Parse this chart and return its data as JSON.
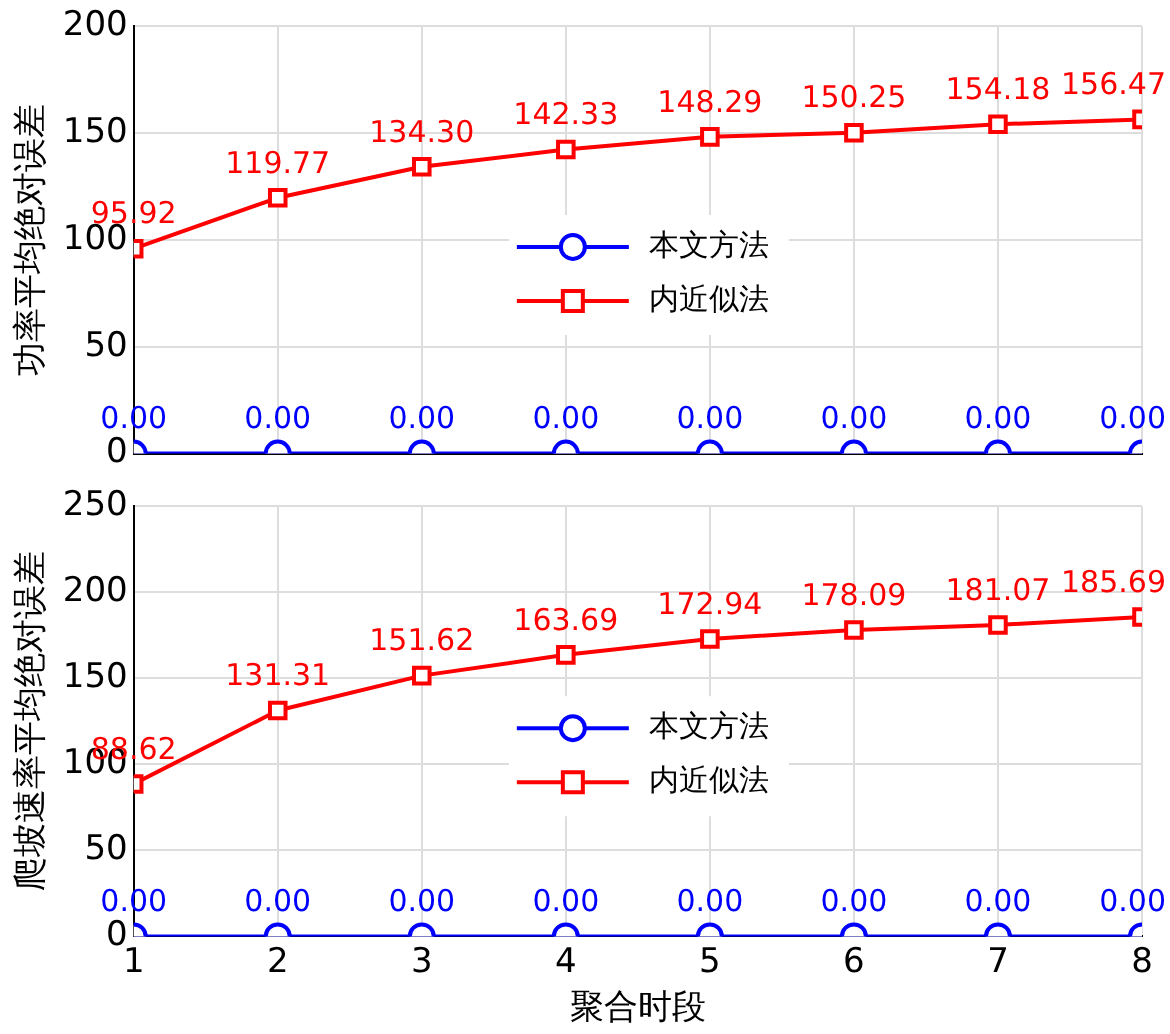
{
  "chart_data": [
    {
      "type": "line",
      "ylabel": "功率平均绝对误差",
      "x": [
        1,
        2,
        3,
        4,
        5,
        6,
        7,
        8
      ],
      "xlim": [
        1,
        8
      ],
      "xticks": [
        1,
        2,
        3,
        4,
        5,
        6,
        7,
        8
      ],
      "ylim": [
        0,
        200
      ],
      "yticks": [
        0,
        50,
        100,
        150,
        200
      ],
      "grid": true,
      "legend": "center",
      "tick_labels": "y",
      "series": [
        {
          "name": "本文方法",
          "color": "#0000ff",
          "marker": "circle",
          "values": [
            0,
            0,
            0,
            0,
            0,
            0,
            0,
            0
          ],
          "value_labels": [
            "0.00",
            "0.00",
            "0.00",
            "0.00",
            "0.00",
            "0.00",
            "0.00",
            "0.00"
          ]
        },
        {
          "name": "内近似法",
          "color": "#ff0000",
          "marker": "square",
          "values": [
            95.92,
            119.77,
            134.3,
            142.33,
            148.29,
            150.25,
            154.18,
            156.47
          ],
          "value_labels": [
            "95.92",
            "119.77",
            "134.30",
            "142.33",
            "148.29",
            "150.25",
            "154.18",
            "156.47"
          ]
        }
      ]
    },
    {
      "type": "line",
      "ylabel": "爬坡速率平均绝对误差",
      "xlabel": "聚合时段",
      "x": [
        1,
        2,
        3,
        4,
        5,
        6,
        7,
        8
      ],
      "xlim": [
        1,
        8
      ],
      "xticks": [
        1,
        2,
        3,
        4,
        5,
        6,
        7,
        8
      ],
      "ylim": [
        0,
        250
      ],
      "yticks": [
        0,
        50,
        100,
        150,
        200,
        250
      ],
      "grid": true,
      "legend": "center",
      "series": [
        {
          "name": "本文方法",
          "color": "#0000ff",
          "marker": "circle",
          "values": [
            0,
            0,
            0,
            0,
            0,
            0,
            0,
            0
          ],
          "value_labels": [
            "0.00",
            "0.00",
            "0.00",
            "0.00",
            "0.00",
            "0.00",
            "0.00",
            "0.00"
          ]
        },
        {
          "name": "内近似法",
          "color": "#ff0000",
          "marker": "square",
          "values": [
            88.62,
            131.31,
            151.62,
            163.69,
            172.94,
            178.09,
            181.07,
            185.69
          ],
          "value_labels": [
            "88.62",
            "131.31",
            "151.62",
            "163.69",
            "172.94",
            "178.09",
            "181.07",
            "185.69"
          ]
        }
      ]
    }
  ]
}
